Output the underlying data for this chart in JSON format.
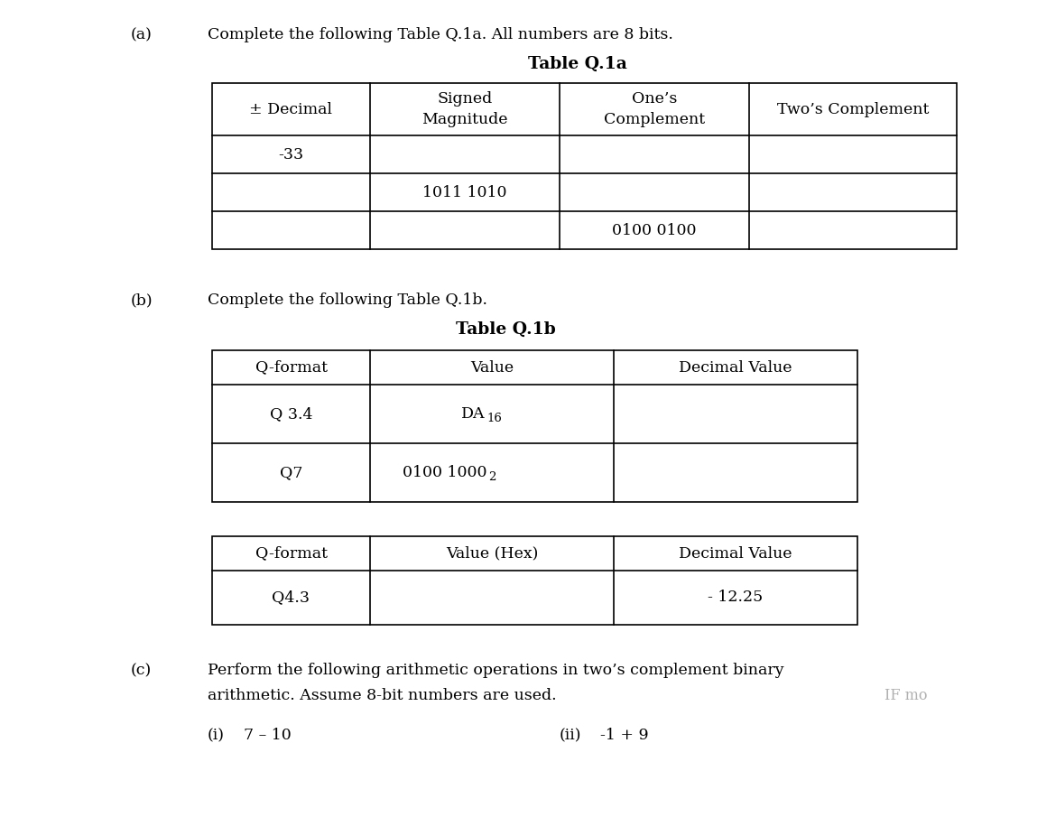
{
  "bg_color": "#ffffff",
  "text_color": "#000000",
  "part_a_label": "(a)",
  "part_a_text": "Complete the following Table Q.1a. All numbers are 8 bits.",
  "part_a_title": "Table Q.1a",
  "table_a_headers": [
    "± Decimal",
    "Signed\nMagnitude",
    "One’s\nComplement",
    "Two’s Complement"
  ],
  "table_a_rows": [
    [
      "-33",
      "",
      "",
      ""
    ],
    [
      "",
      "1011 1010",
      "",
      ""
    ],
    [
      "",
      "",
      "0100 0100",
      ""
    ]
  ],
  "part_b_label": "(b)",
  "part_b_text": "Complete the following Table Q.1b.",
  "part_b_title": "Table Q.1b",
  "table_b1_headers": [
    "Q-format",
    "Value",
    "Decimal Value"
  ],
  "table_b1_rows_col0": [
    "Q 3.4",
    "Q7"
  ],
  "table_b1_rows_col1_plain": [
    "DA",
    "0100 1000"
  ],
  "table_b1_rows_col1_sub": [
    "16",
    "2"
  ],
  "table_b1_rows_col2": [
    "",
    ""
  ],
  "table_b2_headers": [
    "Q-format",
    "Value (Hex)",
    "Decimal Value"
  ],
  "table_b2_rows": [
    [
      "Q4.3",
      "",
      "- 12.25"
    ]
  ],
  "part_c_label": "(c)",
  "part_c_text1": "Perform the following arithmetic operations in two’s complement binary",
  "part_c_text2": "arithmetic. Assume 8-bit numbers are used.",
  "part_c_watermark": "IF mo",
  "part_c_i_label": "(i)",
  "part_c_i_expr": "7 – 10",
  "part_c_ii_label": "(ii)",
  "part_c_ii_expr": "-1 + 9",
  "font_size_body": 12.5,
  "font_size_label": 12.5,
  "font_size_title": 13.5,
  "font_size_table_header": 12.5,
  "font_size_table_cell": 12.5,
  "font_family": "DejaVu Serif"
}
